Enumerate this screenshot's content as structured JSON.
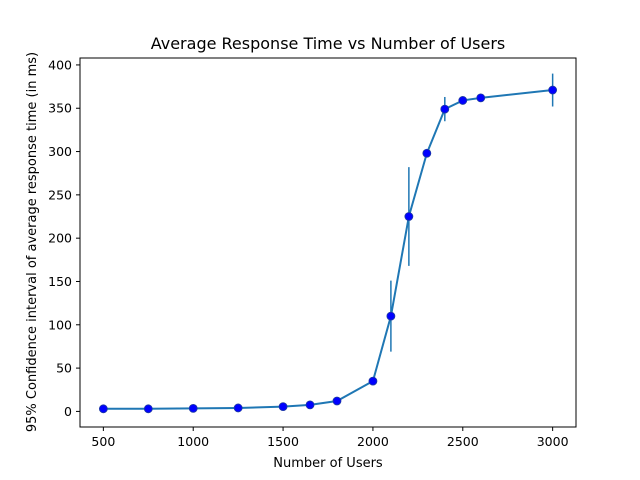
{
  "chart_data": {
    "type": "line",
    "title": "Average Response Time vs Number of Users",
    "xlabel": "Number of Users",
    "ylabel": "95% Confidence interval of average response time (in ms)",
    "xlim": [
      370,
      3130
    ],
    "ylim": [
      -18,
      408
    ],
    "xticks": [
      500,
      1000,
      1500,
      2000,
      2500,
      3000
    ],
    "yticks": [
      0,
      50,
      100,
      150,
      200,
      250,
      300,
      350,
      400
    ],
    "grid": false,
    "series": [
      {
        "x": [
          500,
          750,
          1000,
          1250,
          1500,
          1650,
          1800,
          2000,
          2100,
          2200,
          2300,
          2400,
          2500,
          2600,
          3000
        ],
        "y": [
          3,
          3,
          3.5,
          4,
          5.5,
          7.5,
          12,
          35,
          110,
          225,
          298,
          349,
          359,
          362,
          371
        ],
        "yerr": [
          1,
          1,
          1,
          1,
          1,
          1.5,
          2,
          3,
          41,
          57,
          5,
          14,
          4,
          3,
          19
        ],
        "color": "#1f77b4",
        "marker_color": "#0000ff"
      }
    ]
  }
}
